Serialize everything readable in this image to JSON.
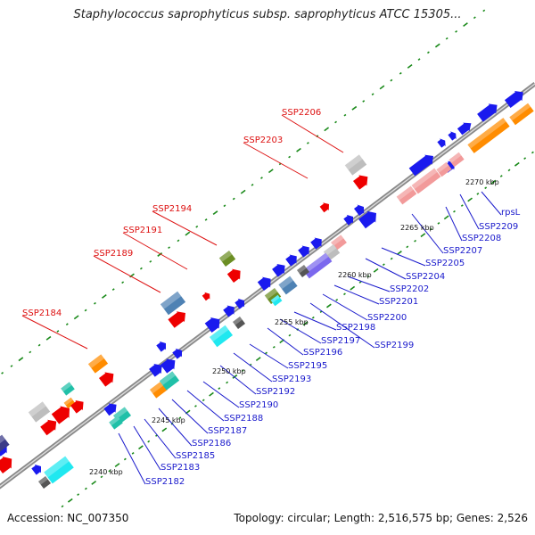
{
  "title": "Staphylococcus saprophyticus subsp. saprophyticus ATCC 15305...",
  "accession": "Accession: NC_007350",
  "summary": "Topology: circular; Length: 2,516,575 bp; Genes: 2,526",
  "colors": {
    "backbone": "#8a8a8a",
    "red": "#ee0000",
    "blue": "#1a1aee",
    "orange": "#ff8c00",
    "cyan": "#20e8f0",
    "pink": "#f29a9a",
    "grey": "#bdbdbd",
    "dark": "#555555",
    "olive": "#6b8e23",
    "steel": "#4e82b4",
    "purple": "#7b68ee",
    "teal": "#20c0a8",
    "label_red": "#dd1111",
    "label_blue": "#1a1acc",
    "dot": "#1a8a1a"
  },
  "ticks": [
    "2240 kbp",
    "2245 kbp",
    "2250 kbp",
    "2255 kbp",
    "2260 kbp",
    "2265 kbp",
    "2270 kbp"
  ],
  "red_labels": [
    "SSP2184",
    "SSP2189",
    "SSP2191",
    "SSP2194",
    "SSP2203",
    "SSP2206"
  ],
  "blue_labels": [
    "SSP2182",
    "SSP2183",
    "SSP2185",
    "SSP2186",
    "SSP2187",
    "SSP2188",
    "SSP2190",
    "SSP2192",
    "SSP2193",
    "SSP2195",
    "SSP2196",
    "SSP2197",
    "SSP2198",
    "SSP2199",
    "SSP2200",
    "SSP2201",
    "SSP2202",
    "SSP2204",
    "SSP2205",
    "SSP2207",
    "SSP2208",
    "SSP2209",
    "rpsL"
  ]
}
